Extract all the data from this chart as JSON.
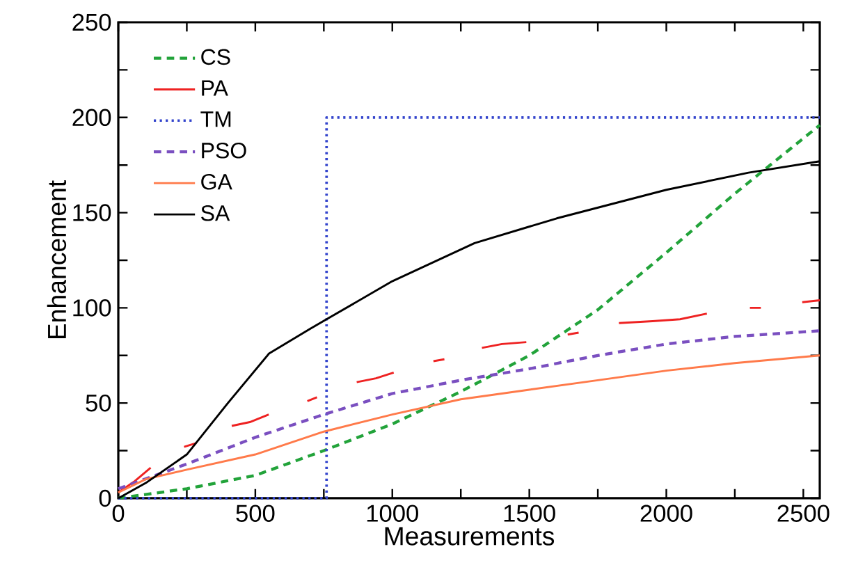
{
  "chart_data": {
    "type": "line",
    "xlabel": "Measurements",
    "ylabel": "Enhancement",
    "xlim": [
      0,
      2560
    ],
    "ylim": [
      0,
      250
    ],
    "xticks": [
      0,
      {
        "value": 250,
        "label": null
      },
      500,
      {
        "value": 750,
        "label": null
      },
      1000,
      {
        "value": 1250,
        "label": null
      },
      1500,
      {
        "value": 1750,
        "label": null
      },
      2000,
      {
        "value": 2250,
        "label": null
      },
      2500
    ],
    "yticks": [
      0,
      {
        "value": 25,
        "label": null
      },
      50,
      {
        "value": 75,
        "label": null
      },
      100,
      {
        "value": 125,
        "label": null
      },
      150,
      {
        "value": 175,
        "label": null
      },
      200,
      {
        "value": 225,
        "label": null
      },
      250
    ],
    "grid": false,
    "legend": "top left",
    "marker": "none",
    "series": [
      {
        "name": "CS",
        "color": "#22a33a",
        "line_style": "dashed",
        "x": [
          0,
          250,
          500,
          750,
          1000,
          1250,
          1500,
          1750,
          2000,
          2250,
          2560
        ],
        "values": [
          0,
          5,
          12,
          25,
          39,
          56,
          75,
          99,
          129,
          160,
          196
        ]
      },
      {
        "name": "PA",
        "color": "#ee2222",
        "line_style": "solid",
        "x": [
          0,
          60,
          118,
          190,
          240,
          285,
          340,
          414,
          480,
          549,
          620,
          690,
          725,
          790,
          870,
          940,
          1005,
          1080,
          1150,
          1190,
          1250,
          1327,
          1400,
          1489,
          1570,
          1640,
          1680,
          1750,
          1827,
          1950,
          2050,
          2148,
          2230,
          2305,
          2345,
          2410,
          2496,
          2560
        ],
        "values": [
          3,
          9,
          16,
          null,
          27,
          29,
          null,
          38,
          40,
          44,
          null,
          51,
          53,
          null,
          61,
          63,
          66,
          null,
          72,
          73,
          null,
          79,
          81,
          82,
          null,
          86,
          87,
          null,
          92,
          93,
          94,
          97,
          null,
          100,
          100,
          null,
          103,
          104
        ]
      },
      {
        "name": "TM",
        "color": "#3344cc",
        "line_style": "dotted",
        "x": [
          0,
          760,
          760,
          2560
        ],
        "values": [
          0,
          0,
          200,
          200
        ]
      },
      {
        "name": "PSO",
        "color": "#7a4fc0",
        "line_style": "dashed",
        "x": [
          0,
          250,
          500,
          750,
          1000,
          1250,
          1500,
          1750,
          2000,
          2250,
          2560
        ],
        "values": [
          5,
          18,
          32,
          44,
          55,
          62,
          68,
          75,
          81,
          85,
          88
        ]
      },
      {
        "name": "GA",
        "color": "#ff7a4a",
        "line_style": "solid",
        "x": [
          0,
          100,
          250,
          500,
          750,
          1000,
          1250,
          1500,
          1750,
          2000,
          2250,
          2560
        ],
        "values": [
          3,
          10,
          15,
          23,
          35,
          44,
          52,
          57,
          62,
          67,
          71,
          75
        ]
      },
      {
        "name": "SA",
        "color": "#000000",
        "line_style": "solid",
        "x": [
          0,
          100,
          250,
          400,
          550,
          700,
          760,
          1000,
          1300,
          1600,
          2000,
          2300,
          2560
        ],
        "values": [
          0,
          8,
          23,
          50,
          76,
          89,
          94,
          114,
          134,
          147,
          162,
          171,
          177
        ]
      }
    ]
  }
}
